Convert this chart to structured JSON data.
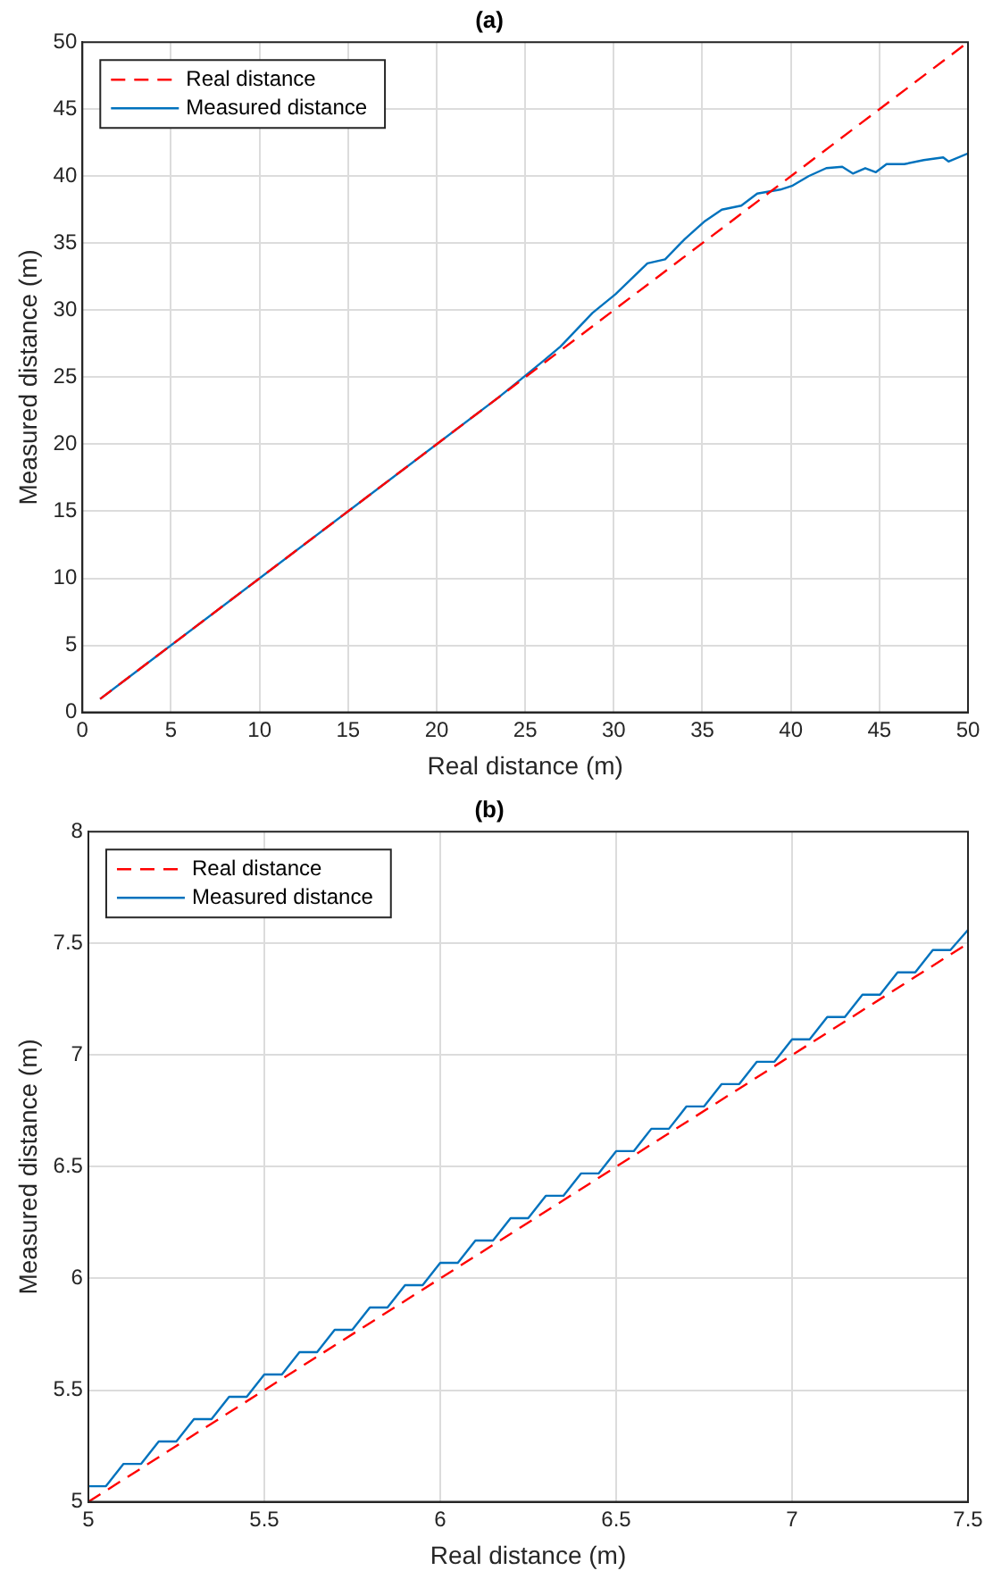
{
  "chart_data": [
    {
      "type": "line",
      "title": "(a)",
      "xlabel": "Real distance (m)",
      "ylabel": "Measured distance (m)",
      "xlim": [
        0,
        50
      ],
      "ylim": [
        0,
        50
      ],
      "xticks": [
        0,
        5,
        10,
        15,
        20,
        25,
        30,
        35,
        40,
        45,
        50
      ],
      "yticks": [
        0,
        5,
        10,
        15,
        20,
        25,
        30,
        35,
        40,
        45,
        50
      ],
      "grid": true,
      "legend": "top left",
      "marker": "none",
      "series": [
        {
          "name": "Real distance",
          "color": "#ff0000",
          "line_style": "dashed",
          "x": [
            1,
            50
          ],
          "values": [
            1,
            50
          ]
        },
        {
          "name": "Measured distance",
          "color": "#0072bd",
          "line_style": "solid",
          "x": [
            1,
            23.5,
            24.9,
            26.1,
            27.0,
            28.8,
            30.1,
            31.9,
            32.9,
            34.0,
            35.1,
            36.1,
            37.2,
            38.1,
            39.4,
            40.1,
            41.0,
            42.0,
            42.9,
            43.5,
            44.2,
            44.8,
            45.4,
            46.4,
            47.5,
            48.6,
            48.9,
            50.0
          ],
          "values": [
            1,
            23.5,
            25,
            26.3,
            27.3,
            29.8,
            31.2,
            33.5,
            33.8,
            35.3,
            36.6,
            37.5,
            37.8,
            38.7,
            39.0,
            39.3,
            40.0,
            40.6,
            40.7,
            40.2,
            40.6,
            40.3,
            40.9,
            40.9,
            41.2,
            41.4,
            41.1,
            41.7
          ]
        }
      ]
    },
    {
      "type": "line",
      "title": "(b)",
      "xlabel": "Real distance (m)",
      "ylabel": "Measured distance (m)",
      "xlim": [
        5,
        7.5
      ],
      "ylim": [
        5,
        8
      ],
      "xticks": [
        5,
        5.5,
        6,
        6.5,
        7,
        7.5
      ],
      "yticks": [
        5,
        5.5,
        6,
        6.5,
        7,
        7.5,
        8
      ],
      "grid": true,
      "legend": "top left",
      "marker": "none",
      "series": [
        {
          "name": "Real distance",
          "color": "#ff0000",
          "line_style": "dashed",
          "x": [
            5,
            7.5
          ],
          "values": [
            5,
            7.5
          ]
        },
        {
          "name": "Measured distance",
          "color": "#0072bd",
          "line_style": "solid",
          "x": [
            5,
            5.05,
            5.1,
            5.15,
            5.2,
            5.25,
            5.3,
            5.35,
            5.4,
            5.45,
            5.5,
            5.55,
            5.6,
            5.65,
            5.7,
            5.75,
            5.8,
            5.85,
            5.9,
            5.95,
            6,
            6.05,
            6.1,
            6.15,
            6.2,
            6.25,
            6.3,
            6.35,
            6.4,
            6.45,
            6.5,
            6.55,
            6.6,
            6.65,
            6.7,
            6.75,
            6.8,
            6.85,
            6.9,
            6.95,
            7,
            7.05,
            7.1,
            7.15,
            7.2,
            7.25,
            7.3,
            7.35,
            7.4,
            7.45,
            7.5
          ],
          "values": [
            5.07,
            5.07,
            5.17,
            5.17,
            5.27,
            5.27,
            5.37,
            5.37,
            5.47,
            5.47,
            5.57,
            5.57,
            5.67,
            5.67,
            5.77,
            5.77,
            5.87,
            5.87,
            5.97,
            5.97,
            6.07,
            6.07,
            6.17,
            6.17,
            6.27,
            6.27,
            6.37,
            6.37,
            6.47,
            6.47,
            6.57,
            6.57,
            6.67,
            6.67,
            6.77,
            6.77,
            6.87,
            6.87,
            6.97,
            6.97,
            7.07,
            7.07,
            7.17,
            7.17,
            7.27,
            7.27,
            7.37,
            7.37,
            7.47,
            7.47,
            7.56
          ]
        }
      ]
    }
  ]
}
